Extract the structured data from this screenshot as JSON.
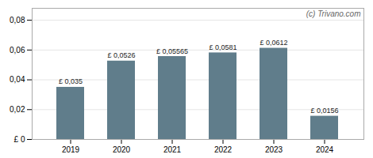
{
  "chart_data": {
    "type": "bar",
    "categories": [
      "2019",
      "2020",
      "2021",
      "2022",
      "2023",
      "2024"
    ],
    "values": [
      0.035,
      0.0526,
      0.05565,
      0.0581,
      0.0612,
      0.0156
    ],
    "value_labels": [
      "£ 0,035",
      "£ 0,0526",
      "£ 0,05565",
      "£ 0,0581",
      "£ 0,0612",
      "£ 0,0156"
    ],
    "color": "#607d8b",
    "ylim": [
      0,
      0.088
    ],
    "yticks": [
      {
        "value": 0,
        "label": "£ 0"
      },
      {
        "value": 0.02,
        "label": "0,02"
      },
      {
        "value": 0.04,
        "label": "0,04"
      },
      {
        "value": 0.06,
        "label": "0,06"
      },
      {
        "value": 0.08,
        "label": "0,08"
      }
    ],
    "grid": true,
    "data_labels": true,
    "annotations": [
      "(c) Trivano.com"
    ]
  }
}
